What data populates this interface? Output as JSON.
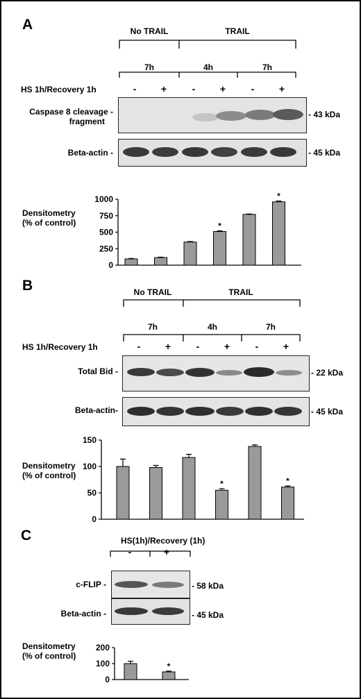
{
  "panelA": {
    "letter": "A",
    "group_no": "No TRAIL",
    "group_yes": "TRAIL",
    "times": [
      "7h",
      "4h",
      "7h"
    ],
    "treatment_label": "HS 1h/Recovery 1h",
    "lanes": [
      "-",
      "+",
      "-",
      "+",
      "-",
      "+"
    ],
    "blot1_label_line1": "Caspase 8 cleavage -",
    "blot1_label_line2": "fragment",
    "blot1_size": "- 43 kDa",
    "blot2_label": "Beta-actin -",
    "blot2_size": "- 45 kDa",
    "ylabel_line1": "Densitometry",
    "ylabel_line2": "(% of control)"
  },
  "panelB": {
    "letter": "B",
    "group_no": "No TRAIL",
    "group_yes": "TRAIL",
    "times": [
      "7h",
      "4h",
      "7h"
    ],
    "treatment_label": "HS 1h/Recovery 1h",
    "lanes": [
      "-",
      "+",
      "-",
      "+",
      "-",
      "+"
    ],
    "blot1_label": "Total Bid -",
    "blot1_size": "- 22 kDa",
    "blot2_label": "Beta-actin-",
    "blot2_size": "- 45 kDa",
    "ylabel_line1": "Densitometry",
    "ylabel_line2": "(% of control)"
  },
  "panelC": {
    "letter": "C",
    "treatment_label": "HS(1h)/Recovery (1h)",
    "lanes": [
      "-",
      "+"
    ],
    "blot1_label": "c-FLIP -",
    "blot1_size": "- 58 kDa",
    "blot2_label": "Beta-actin -",
    "blot2_size": "- 45 kDa",
    "ylabel_line1": "Densitometry",
    "ylabel_line2": "(% of control)"
  },
  "colors": {
    "bar_fill": "#9a9a9a",
    "bar_stroke": "#000000",
    "background": "#ffffff",
    "frame": "#000000"
  },
  "chart_data": [
    {
      "type": "bar",
      "panel": "A",
      "categories": [
        "No TRAIL 7h -",
        "No TRAIL 7h +",
        "TRAIL 4h -",
        "TRAIL 4h +",
        "TRAIL 7h -",
        "TRAIL 7h +"
      ],
      "values": [
        95,
        115,
        350,
        510,
        770,
        960
      ],
      "errors": [
        6,
        6,
        8,
        10,
        6,
        12
      ],
      "significant": [
        false,
        false,
        false,
        true,
        false,
        true
      ],
      "significance_marker": "*",
      "yticks": [
        "0",
        "250",
        "500",
        "750",
        "1000"
      ],
      "ylim": [
        0,
        1000
      ],
      "xlabel": "",
      "ylabel": "Densitometry (% of control)"
    },
    {
      "type": "bar",
      "panel": "B",
      "categories": [
        "No TRAIL 7h -",
        "No TRAIL 7h +",
        "TRAIL 4h -",
        "TRAIL 4h +",
        "TRAIL 7h -",
        "TRAIL 7h +"
      ],
      "values": [
        100,
        98,
        117,
        55,
        138,
        61
      ],
      "errors": [
        14,
        4,
        6,
        3,
        3,
        2
      ],
      "significant": [
        false,
        false,
        false,
        true,
        false,
        true
      ],
      "significance_marker": "*",
      "yticks": [
        "0",
        "50",
        "100",
        "150"
      ],
      "ylim": [
        0,
        150
      ],
      "xlabel": "",
      "ylabel": "Densitometry (% of control)"
    },
    {
      "type": "bar",
      "panel": "C",
      "categories": [
        "-",
        "+"
      ],
      "values": [
        100,
        48
      ],
      "errors": [
        15,
        5
      ],
      "significant": [
        false,
        true
      ],
      "significance_marker": "*",
      "yticks": [
        "0",
        "100",
        "200"
      ],
      "ylim": [
        0,
        200
      ],
      "xlabel": "",
      "ylabel": "Densitometry (% of control)"
    }
  ]
}
